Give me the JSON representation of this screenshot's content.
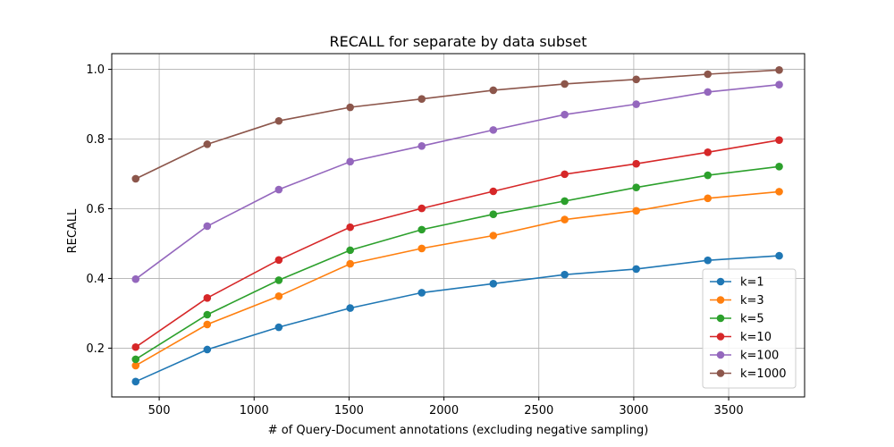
{
  "chart_data": {
    "type": "line",
    "title": "RECALL for separate by data subset",
    "xlabel": "# of Query-Document annotations (excluding negative sampling)",
    "ylabel": "RECALL",
    "xlim": [
      250,
      3900
    ],
    "ylim": [
      0.06,
      1.045
    ],
    "xticks": [
      500,
      1000,
      1500,
      2000,
      2500,
      3000,
      3500
    ],
    "yticks": [
      0.2,
      0.4,
      0.6,
      0.8,
      1.0
    ],
    "xtick_labels": [
      "500",
      "1000",
      "1500",
      "2000",
      "2500",
      "3000",
      "3500"
    ],
    "ytick_labels": [
      "0.2",
      "0.4",
      "0.6",
      "0.8",
      "1.0"
    ],
    "grid": true,
    "legend_position": "lower-right",
    "x": [
      376,
      753,
      1130,
      1506,
      1883,
      2260,
      2636,
      3013,
      3390,
      3766
    ],
    "series": [
      {
        "name": "k=1",
        "color": "#1f77b4",
        "values": [
          0.104,
          0.196,
          0.26,
          0.315,
          0.359,
          0.385,
          0.411,
          0.427,
          0.452,
          0.465
        ]
      },
      {
        "name": "k=3",
        "color": "#ff7f0e",
        "values": [
          0.15,
          0.268,
          0.349,
          0.442,
          0.486,
          0.523,
          0.569,
          0.594,
          0.63,
          0.649
        ]
      },
      {
        "name": "k=5",
        "color": "#2ca02c",
        "values": [
          0.168,
          0.296,
          0.395,
          0.481,
          0.54,
          0.584,
          0.622,
          0.661,
          0.696,
          0.721
        ]
      },
      {
        "name": "k=10",
        "color": "#d62728",
        "values": [
          0.203,
          0.344,
          0.453,
          0.547,
          0.601,
          0.65,
          0.699,
          0.729,
          0.762,
          0.797
        ]
      },
      {
        "name": "k=100",
        "color": "#9467bd",
        "values": [
          0.398,
          0.55,
          0.655,
          0.735,
          0.78,
          0.826,
          0.87,
          0.9,
          0.935,
          0.956
        ]
      },
      {
        "name": "k=1000",
        "color": "#8c564b",
        "values": [
          0.686,
          0.785,
          0.852,
          0.891,
          0.915,
          0.94,
          0.958,
          0.971,
          0.986,
          0.998
        ]
      }
    ]
  }
}
